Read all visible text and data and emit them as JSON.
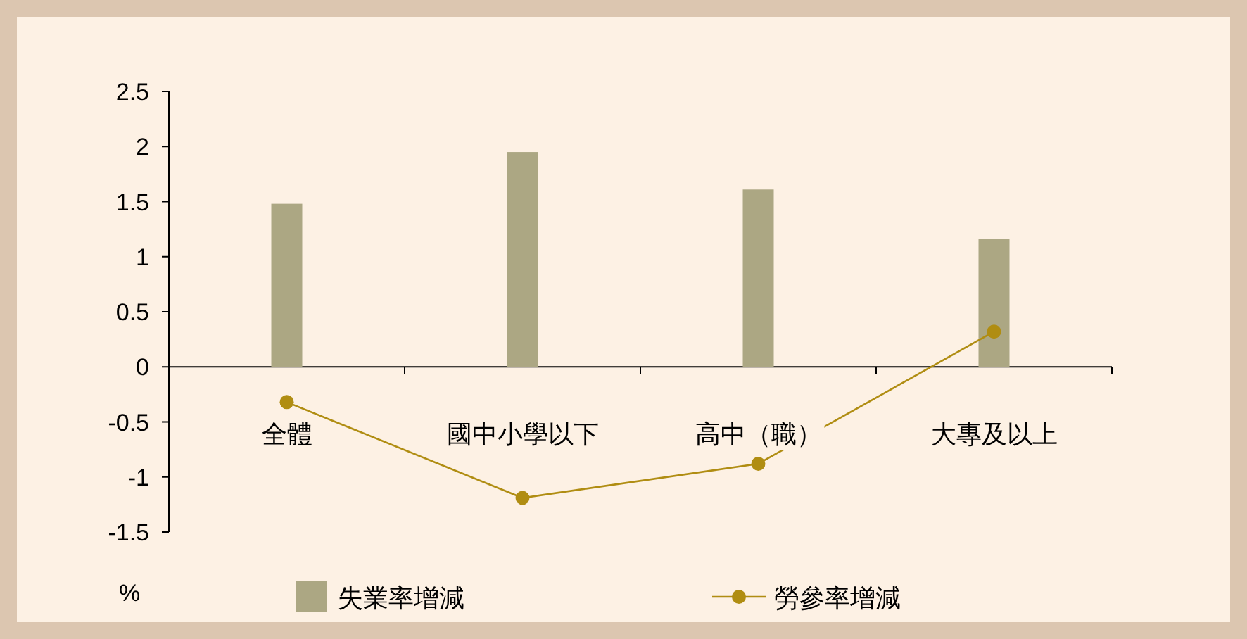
{
  "chart_data": {
    "type": "bar",
    "categories": [
      "全體",
      "國中小學以下",
      "高中（職）",
      "大專及以上"
    ],
    "series": [
      {
        "name": "失業率增減",
        "color": "#aca783",
        "values": [
          1.48,
          1.95,
          1.61,
          1.16
        ]
      },
      {
        "name": "勞參率增減",
        "type": "line",
        "color": "#b08d12",
        "values": [
          -0.32,
          -1.19,
          -0.88,
          0.32
        ]
      }
    ],
    "ylim": [
      -1.5,
      2.5
    ],
    "yticks": [
      -1.5,
      -1,
      -0.5,
      0,
      0.5,
      1,
      1.5,
      2,
      2.5
    ],
    "ylabel": "%",
    "legend": "bottom",
    "marker": "circle",
    "grid": false
  }
}
